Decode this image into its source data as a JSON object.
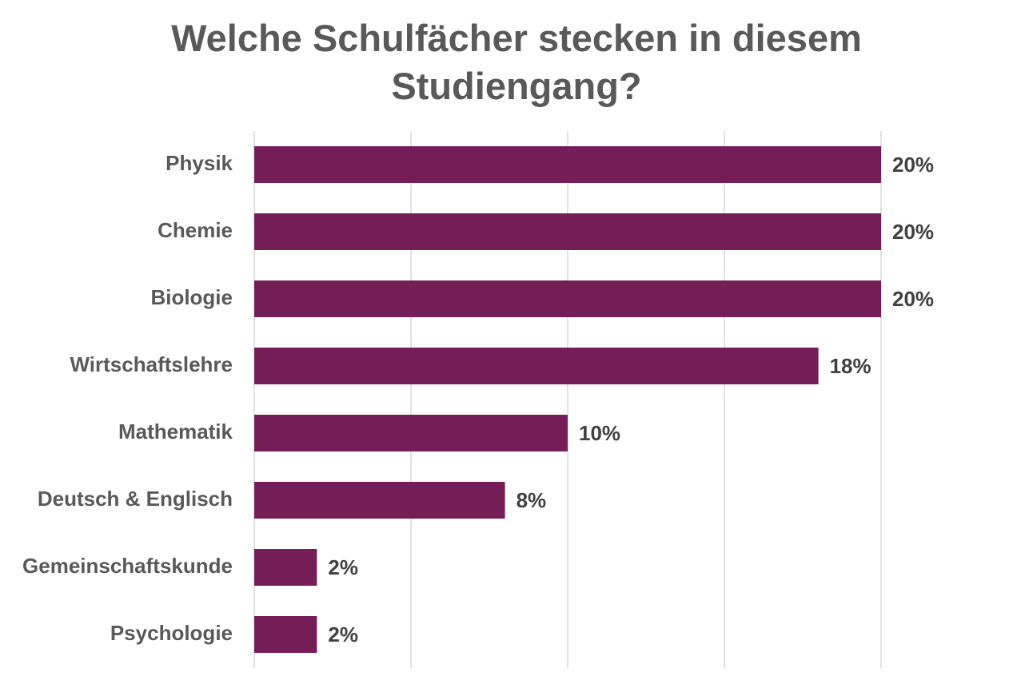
{
  "chart_data": {
    "type": "barh",
    "title": "Welche Schulfächer stecken in diesem Studiengang?",
    "categories": [
      "Physik",
      "Chemie",
      "Biologie",
      "Wirtschaftslehre",
      "Mathematik",
      "Deutsch & Englisch",
      "Gemeinschaftskunde",
      "Psychologie"
    ],
    "values": [
      20,
      20,
      20,
      18,
      10,
      8,
      2,
      2
    ],
    "value_labels": [
      "20%",
      "20%",
      "20%",
      "18%",
      "10%",
      "8%",
      "2%",
      "2%"
    ],
    "color": "#741d57",
    "xlim": [
      0,
      20
    ],
    "xticks": [
      0,
      5,
      10,
      15,
      20
    ],
    "grid": true
  }
}
